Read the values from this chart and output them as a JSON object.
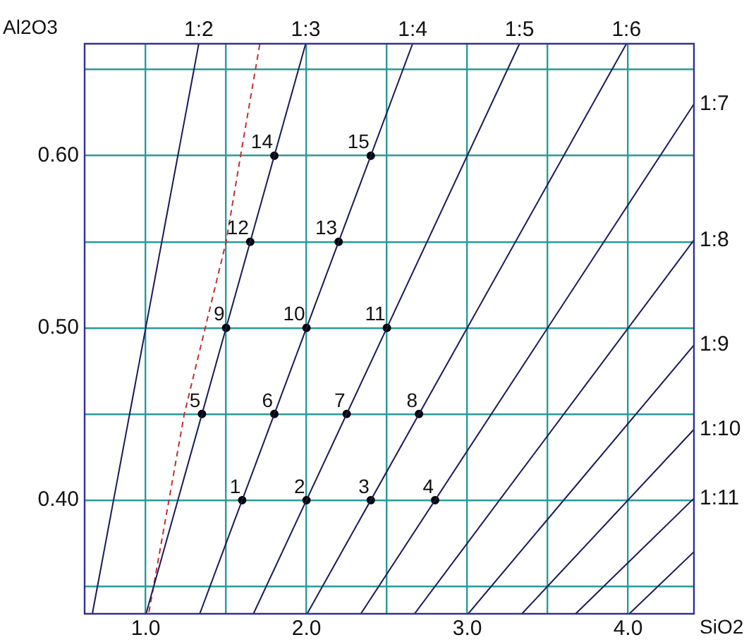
{
  "chart_data": {
    "type": "line",
    "xlabel": "SiO2",
    "ylabel": "Al2O3",
    "xlim": [
      0.62,
      4.41
    ],
    "ylim": [
      0.334,
      0.665
    ],
    "xticks": [
      {
        "value": 1,
        "label": "1.0"
      },
      {
        "value": 1.5,
        "label": null
      },
      {
        "value": 2,
        "label": "2.0"
      },
      {
        "value": 2.5,
        "label": null
      },
      {
        "value": 3,
        "label": "3.0"
      },
      {
        "value": 3.5,
        "label": null
      },
      {
        "value": 4,
        "label": "4.0"
      }
    ],
    "yticks": [
      {
        "value": 0.35,
        "label": null
      },
      {
        "value": 0.4,
        "label": "0.40"
      },
      {
        "value": 0.45,
        "label": null
      },
      {
        "value": 0.5,
        "label": "0.50"
      },
      {
        "value": 0.55,
        "label": null
      },
      {
        "value": 0.6,
        "label": "0.60"
      },
      {
        "value": 0.65,
        "label": null
      }
    ],
    "grid": true,
    "legend": false,
    "series": [
      {
        "name": "1:2",
        "color": "#1a1a5a",
        "marker": "none",
        "x": [
          0.668,
          1.33
        ],
        "values": [
          0.334,
          0.665
        ]
      },
      {
        "name": "1:3",
        "type": "line",
        "color": "#1a1a5a",
        "marker": "none",
        "x": [
          1.002,
          1.995
        ],
        "values": [
          0.334,
          0.665
        ]
      },
      {
        "name": "1:4",
        "type": "line",
        "color": "#1a1a5a",
        "marker": "none",
        "x": [
          1.336,
          2.66
        ],
        "values": [
          0.334,
          0.665
        ]
      },
      {
        "name": "1:5",
        "type": "line",
        "color": "#1a1a5a",
        "marker": "none",
        "x": [
          1.67,
          3.325
        ],
        "values": [
          0.334,
          0.665
        ]
      },
      {
        "name": "1:6",
        "type": "line",
        "color": "#1a1a5a",
        "marker": "none",
        "x": [
          2.004,
          3.99
        ],
        "values": [
          0.334,
          0.665
        ]
      },
      {
        "name": "1:7",
        "type": "line",
        "color": "#1a1a5a",
        "marker": "none",
        "x": [
          2.338,
          4.41
        ],
        "values": [
          0.334,
          0.63
        ]
      },
      {
        "name": "1:8",
        "type": "line",
        "color": "#1a1a5a",
        "marker": "none",
        "x": [
          2.672,
          4.41
        ],
        "values": [
          0.334,
          0.551
        ]
      },
      {
        "name": "1:9",
        "type": "line",
        "color": "#1a1a5a",
        "marker": "none",
        "x": [
          3.006,
          4.41
        ],
        "values": [
          0.334,
          0.49
        ]
      },
      {
        "name": "1:10",
        "type": "line",
        "color": "#1a1a5a",
        "marker": "none",
        "x": [
          3.34,
          4.41
        ],
        "values": [
          0.334,
          0.441
        ]
      },
      {
        "name": "1:11",
        "type": "line",
        "color": "#1a1a5a",
        "marker": "none",
        "x": [
          3.674,
          4.41
        ],
        "values": [
          0.334,
          0.401
        ]
      },
      {
        "type": "line",
        "color": "#1a1a5a",
        "marker": "none",
        "x": [
          4.008,
          4.41
        ],
        "values": [
          0.334,
          0.37
        ]
      },
      {
        "type": "line",
        "color": "#c03030",
        "marker": "none",
        "line_style": "dashed",
        "x": [
          1.02,
          1.24,
          1.5,
          1.59,
          1.71
        ],
        "values": [
          0.335,
          0.45,
          0.55,
          0.6,
          0.665
        ]
      },
      {
        "type": "scatter",
        "color": "#000000",
        "marker": "circle",
        "x": [
          1.6,
          2.0,
          2.4,
          2.8,
          1.35,
          1.8,
          2.25,
          2.7,
          1.5,
          2.0,
          2.5,
          1.65,
          2.2,
          1.8,
          2.4
        ],
        "values": [
          0.4,
          0.4,
          0.4,
          0.4,
          0.45,
          0.45,
          0.45,
          0.45,
          0.5,
          0.5,
          0.5,
          0.55,
          0.55,
          0.6,
          0.6
        ]
      }
    ],
    "annotations": [
      {
        "text": "1",
        "x": 1.6,
        "y": 0.4
      },
      {
        "text": "2",
        "x": 2.0,
        "y": 0.4
      },
      {
        "text": "3",
        "x": 2.4,
        "y": 0.4
      },
      {
        "text": "4",
        "x": 2.8,
        "y": 0.4
      },
      {
        "text": "5",
        "x": 1.35,
        "y": 0.45
      },
      {
        "text": "6",
        "x": 1.8,
        "y": 0.45
      },
      {
        "text": "7",
        "x": 2.25,
        "y": 0.45
      },
      {
        "text": "8",
        "x": 2.7,
        "y": 0.45
      },
      {
        "text": "9",
        "x": 1.5,
        "y": 0.5
      },
      {
        "text": "10",
        "x": 2.0,
        "y": 0.5
      },
      {
        "text": "11",
        "x": 2.5,
        "y": 0.5
      },
      {
        "text": "12",
        "x": 1.65,
        "y": 0.55
      },
      {
        "text": "13",
        "x": 2.2,
        "y": 0.55
      },
      {
        "text": "14",
        "x": 1.8,
        "y": 0.6
      },
      {
        "text": "15",
        "x": 2.4,
        "y": 0.6
      }
    ]
  }
}
